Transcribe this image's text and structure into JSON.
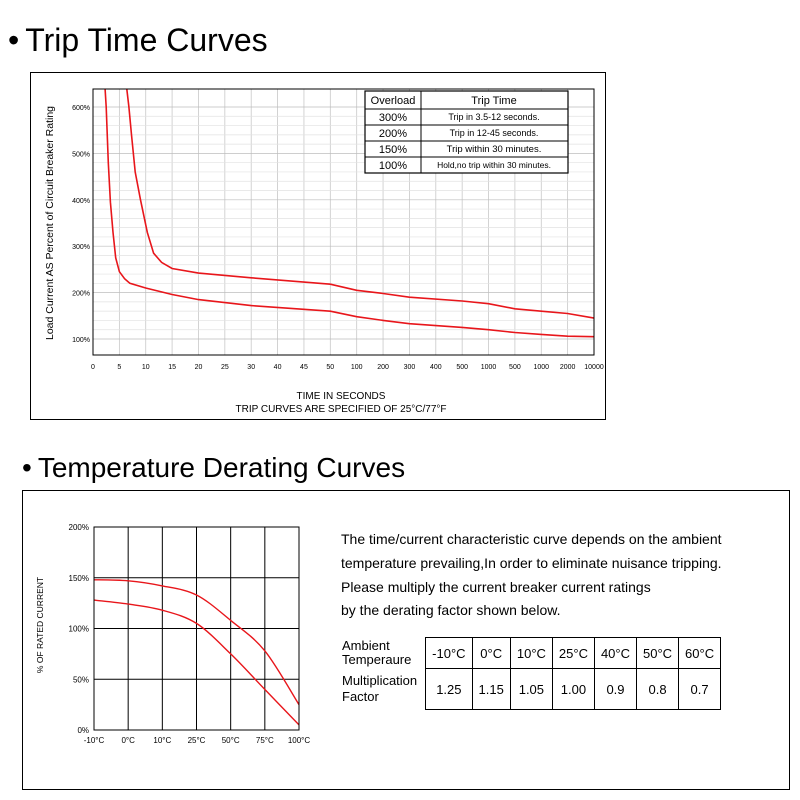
{
  "sections": {
    "trip": {
      "bullet": "•",
      "title": "Trip Time Curves"
    },
    "derating": {
      "bullet": "•",
      "title": "Temperature Derating Curves"
    }
  },
  "trip_table": {
    "headers": [
      "Overload",
      "Trip Time"
    ],
    "rows": [
      [
        "300%",
        "Trip in 3.5-12 seconds."
      ],
      [
        "200%",
        "Trip in 12-45 seconds."
      ],
      [
        "150%",
        "Trip within 30 minutes."
      ],
      [
        "100%",
        "Hold,no trip within 30 minutes."
      ]
    ]
  },
  "description": [
    "The time/current characteristic curve depends on the ambient",
    "temperature prevailing,In order to eliminate nuisance tripping.",
    "Please multiply the current breaker current ratings",
    "by the derating factor shown below."
  ],
  "derating_table": {
    "row1_label": [
      "Ambient",
      "Temperaure"
    ],
    "row2_label": [
      "Multiplication",
      "Factor"
    ],
    "temps": [
      "-10°C",
      "0°C",
      "10°C",
      "25°C",
      "40°C",
      "50°C",
      "60°C"
    ],
    "factors": [
      "1.25",
      "1.15",
      "1.05",
      "1.00",
      "0.9",
      "0.8",
      "0.7"
    ]
  },
  "chart_data": [
    {
      "type": "line",
      "xlabel": "TIME IN SECONDS",
      "caption": "TRIP CURVES ARE SPECIFIED OF 25°C/77°F",
      "ylabel": "Load Current AS Percent of Circuit Breaker Rating",
      "x_ticks": [
        "0",
        "5",
        "10",
        "15",
        "20",
        "25",
        "30",
        "40",
        "45",
        "50",
        "100",
        "200",
        "300",
        "400",
        "500",
        "1000",
        "500",
        "1000",
        "2000",
        "10000"
      ],
      "y_ticks": [
        "100%",
        "200%",
        "300%",
        "400%",
        "500%",
        "600%"
      ],
      "ylim": [
        100,
        600
      ],
      "grid": true,
      "color": "#e8161b",
      "series": [
        {
          "points": [
            [
              2.3,
              650
            ],
            [
              2.5,
              600
            ],
            [
              2.9,
              480
            ],
            [
              3.3,
              395
            ],
            [
              3.8,
              330
            ],
            [
              4.3,
              275
            ],
            [
              5,
              245
            ],
            [
              6,
              230
            ],
            [
              7,
              220
            ],
            [
              10,
              210
            ],
            [
              15,
              196
            ],
            [
              20,
              185
            ],
            [
              30,
              172
            ],
            [
              50,
              160
            ],
            [
              100,
              148
            ],
            [
              200,
              140
            ],
            [
              300,
              133
            ],
            [
              500,
              125
            ],
            [
              1000,
              120
            ],
            [
              500,
              114
            ],
            [
              1000,
              110
            ],
            [
              2000,
              106
            ],
            [
              10000,
              105
            ]
          ]
        },
        {
          "points": [
            [
              6.4,
              650
            ],
            [
              6.8,
              600
            ],
            [
              7.3,
              540
            ],
            [
              8,
              460
            ],
            [
              9,
              400
            ],
            [
              10.3,
              330
            ],
            [
              11.5,
              285
            ],
            [
              13,
              265
            ],
            [
              15,
              252
            ],
            [
              20,
              242
            ],
            [
              30,
              232
            ],
            [
              50,
              218
            ],
            [
              100,
              205
            ],
            [
              200,
              198
            ],
            [
              300,
              190
            ],
            [
              500,
              182
            ],
            [
              1000,
              176
            ],
            [
              500,
              165
            ],
            [
              1000,
              160
            ],
            [
              2000,
              155
            ],
            [
              10000,
              145
            ]
          ]
        }
      ]
    },
    {
      "type": "line",
      "ylabel": "% OF RATED CURRENT",
      "x_ticks": [
        "-10°C",
        "0°C",
        "10°C",
        "25°C",
        "50°C",
        "75°C",
        "100°C"
      ],
      "y_ticks": [
        "0%",
        "50%",
        "100%",
        "150%",
        "200%"
      ],
      "ylim": [
        0,
        200
      ],
      "grid": true,
      "color": "#e8161b",
      "series": [
        {
          "points": [
            [
              -10,
              148
            ],
            [
              0,
              147
            ],
            [
              10,
              142
            ],
            [
              25,
              133
            ],
            [
              50,
              108
            ],
            [
              75,
              78
            ],
            [
              100,
              25
            ]
          ]
        },
        {
          "points": [
            [
              -10,
              128
            ],
            [
              0,
              124
            ],
            [
              10,
              118
            ],
            [
              25,
              105
            ],
            [
              50,
              75
            ],
            [
              75,
              40
            ],
            [
              100,
              5
            ]
          ]
        }
      ]
    }
  ]
}
